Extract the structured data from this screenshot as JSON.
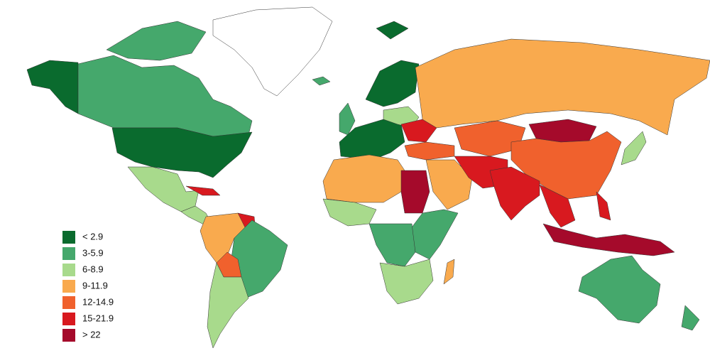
{
  "legend": {
    "items": [
      {
        "label": "< 2.9",
        "color": "#0a6b2e"
      },
      {
        "label": "3-5.9",
        "color": "#45a86c"
      },
      {
        "label": "6-8.9",
        "color": "#a8da8c"
      },
      {
        "label": "9-11.9",
        "color": "#f9aa4e"
      },
      {
        "label": "12-14.9",
        "color": "#f0612d"
      },
      {
        "label": "15-21.9",
        "color": "#d8191f"
      },
      {
        "label": "> 22",
        "color": "#a50a2b"
      }
    ]
  }
}
